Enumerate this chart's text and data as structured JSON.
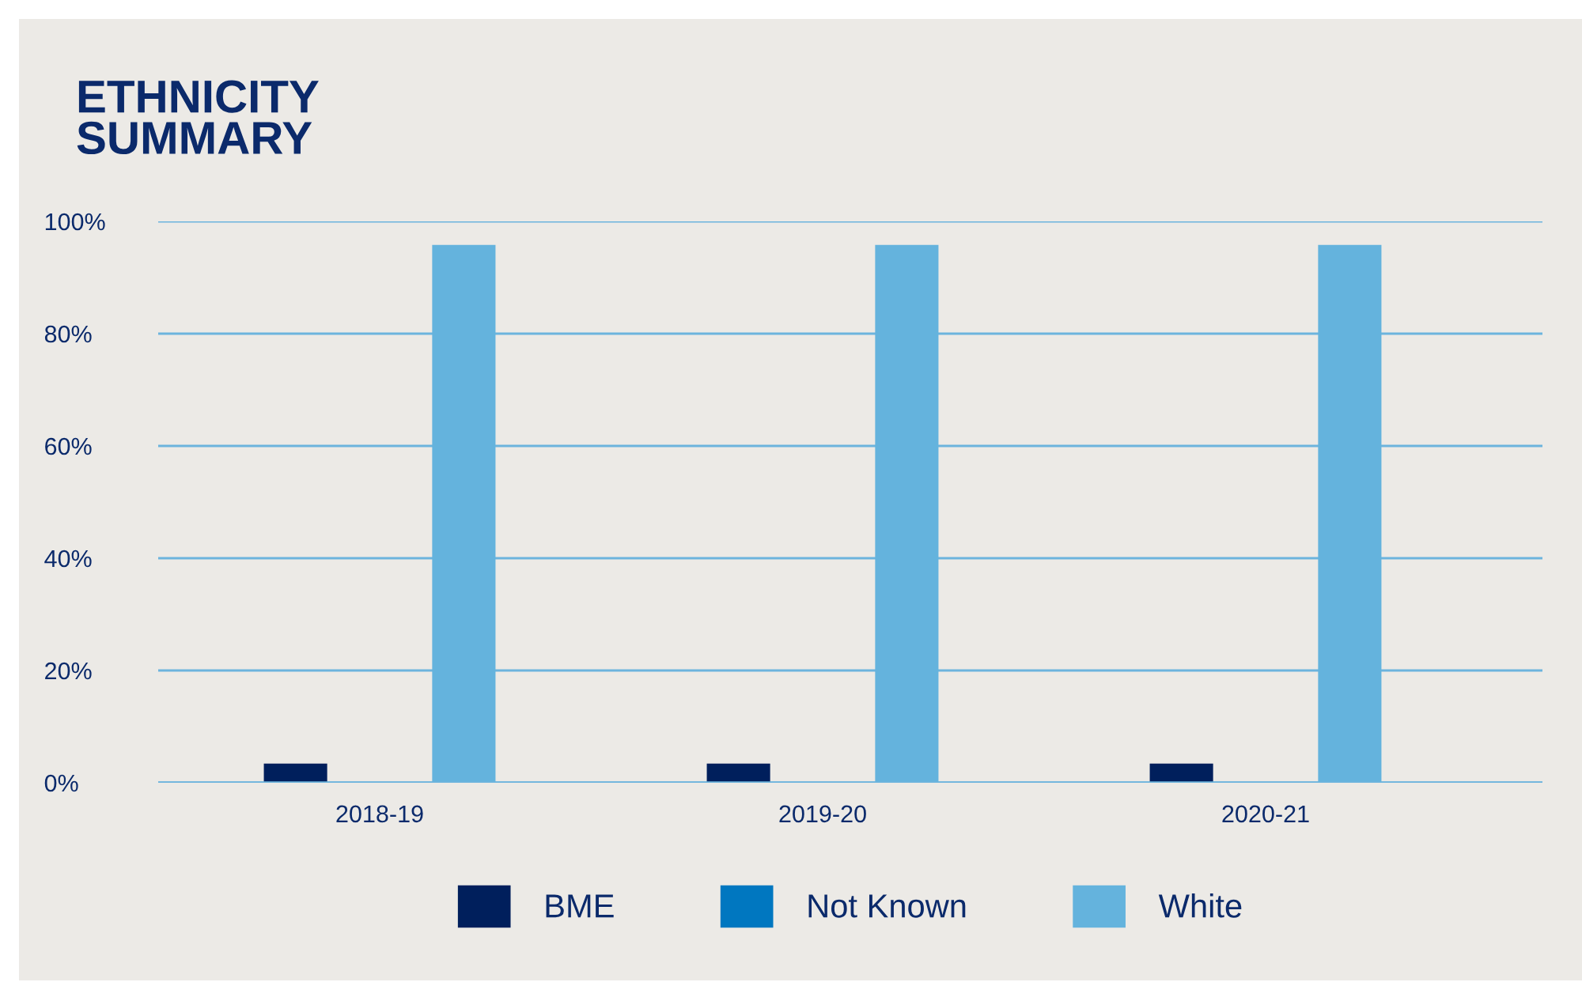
{
  "chart_data": {
    "type": "bar",
    "title": "ETHNICITY\nSUMMARY",
    "categories": [
      "2018-19",
      "2019-20",
      "2020-21"
    ],
    "series": [
      {
        "name": "BME",
        "color": "#001f5c",
        "values": [
          3.4,
          3.4,
          3.4
        ]
      },
      {
        "name": "Not Known",
        "color": "#0077c0",
        "values": [
          0,
          0,
          0
        ]
      },
      {
        "name": "White",
        "color": "#64b3dd",
        "values": [
          95.8,
          95.8,
          95.8
        ]
      }
    ],
    "ylim": [
      0,
      100
    ],
    "yticks": [
      {
        "value": 0,
        "label": "0%"
      },
      {
        "value": 20,
        "label": "20%"
      },
      {
        "value": 40,
        "label": "40%"
      },
      {
        "value": 60,
        "label": "60%"
      },
      {
        "value": 80,
        "label": "80%"
      },
      {
        "value": 100,
        "label": "100%"
      }
    ],
    "grid": "y",
    "legend": "bottom"
  }
}
